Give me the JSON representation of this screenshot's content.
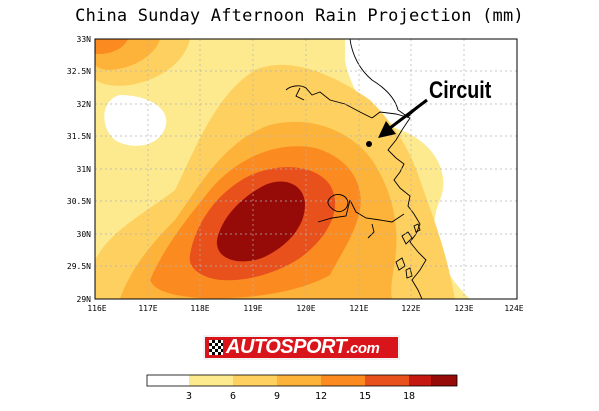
{
  "title": "China Sunday Afternoon Rain Projection (mm)",
  "axes": {
    "lon_ticks": [
      "116E",
      "117E",
      "118E",
      "119E",
      "120E",
      "121E",
      "122E",
      "123E",
      "124E"
    ],
    "lat_ticks": [
      "29N",
      "29.5N",
      "30N",
      "30.5N",
      "31N",
      "31.5N",
      "32N",
      "32.5N",
      "33N"
    ],
    "lon_range": [
      116,
      124
    ],
    "lat_range": [
      29,
      33
    ],
    "grid": "dashed"
  },
  "annotation": {
    "label": "Circuit",
    "point": {
      "lon": 121.2,
      "lat": 31.4
    }
  },
  "legend": {
    "levels": [
      "3",
      "6",
      "9",
      "12",
      "15",
      "18"
    ],
    "colors": [
      "#ffffff",
      "#fde98e",
      "#fdd05f",
      "#fdb23a",
      "#fb8b20",
      "#e8501c",
      "#c41810",
      "#960a08"
    ]
  },
  "logo": {
    "text": "AUTOSPORT",
    "suffix": ".com"
  }
}
